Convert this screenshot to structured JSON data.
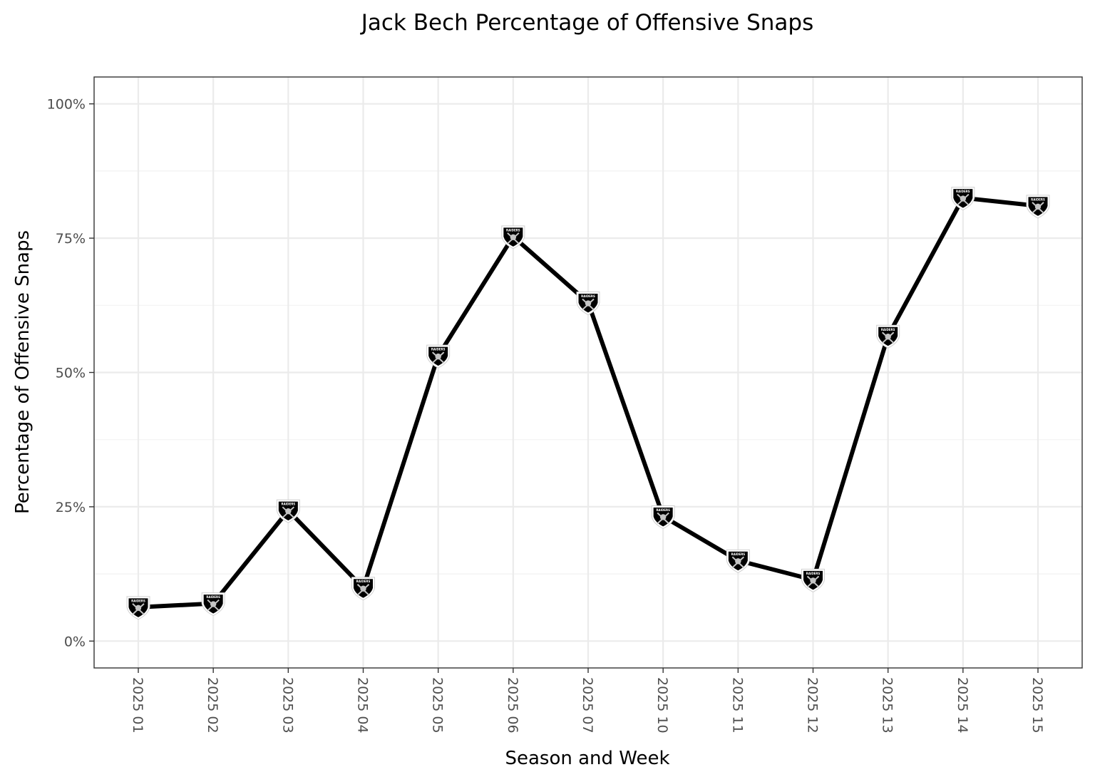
{
  "chart_data": {
    "type": "line",
    "title": "Jack Bech Percentage of Offensive Snaps",
    "xlabel": "Season and Week",
    "ylabel": "Percentage of Offensive Snaps",
    "categories": [
      "2025 01",
      "2025 02",
      "2025 03",
      "2025 04",
      "2025 05",
      "2025 06",
      "2025 07",
      "2025 10",
      "2025 11",
      "2025 12",
      "2025 13",
      "2025 14",
      "2025 15"
    ],
    "series": [
      {
        "values": [
          6.3,
          7.0,
          24.3,
          9.9,
          53.1,
          75.3,
          63.0,
          23.2,
          15.0,
          11.4,
          56.8,
          82.5,
          81.0
        ],
        "color": "#000000",
        "marker": "raiders-shield-icon",
        "marker_label": "RAIDERS"
      }
    ],
    "ylim": [
      -5,
      105
    ],
    "yticks": [
      0,
      25,
      50,
      75,
      100
    ],
    "ytick_labels": [
      "0%",
      "25%",
      "50%",
      "75%",
      "100%"
    ],
    "grid": true,
    "legend": "none"
  }
}
